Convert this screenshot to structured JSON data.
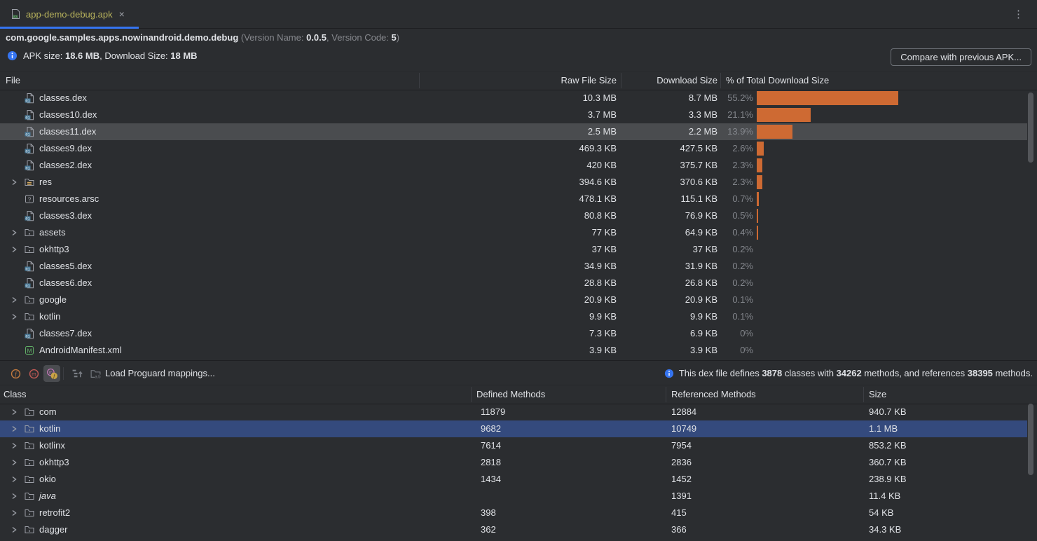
{
  "tab": {
    "title": "app-demo-debug.apk",
    "close_glyph": "×"
  },
  "header": {
    "package_name": "com.google.samples.apps.nowinandroid.demo.debug",
    "version": {
      "prefix": " (Version Name: ",
      "name": "0.0.5",
      "mid": ", Version Code: ",
      "code": "5",
      "suffix": ")"
    },
    "apk": {
      "label": "APK size: ",
      "size": "18.6 MB",
      "mid": ", Download Size: ",
      "download": "18 MB"
    },
    "compare_button_label": "Compare with previous APK..."
  },
  "files_table": {
    "columns": {
      "file": "File",
      "raw": "Raw File Size",
      "download": "Download Size",
      "pct": "% of Total Download Size"
    },
    "rows": [
      {
        "icon": "dex",
        "name": "classes.dex",
        "raw": "10.3 MB",
        "download": "8.7 MB",
        "pct": "55.2%",
        "pct_value": 55.2,
        "expandable": false,
        "selected": false
      },
      {
        "icon": "dex",
        "name": "classes10.dex",
        "raw": "3.7 MB",
        "download": "3.3 MB",
        "pct": "21.1%",
        "pct_value": 21.1,
        "expandable": false,
        "selected": false
      },
      {
        "icon": "dex",
        "name": "classes11.dex",
        "raw": "2.5 MB",
        "download": "2.2 MB",
        "pct": "13.9%",
        "pct_value": 13.9,
        "expandable": false,
        "selected": true
      },
      {
        "icon": "dex",
        "name": "classes9.dex",
        "raw": "469.3 KB",
        "download": "427.5 KB",
        "pct": "2.6%",
        "pct_value": 2.6,
        "expandable": false,
        "selected": false
      },
      {
        "icon": "dex",
        "name": "classes2.dex",
        "raw": "420 KB",
        "download": "375.7 KB",
        "pct": "2.3%",
        "pct_value": 2.3,
        "expandable": false,
        "selected": false
      },
      {
        "icon": "res",
        "name": "res",
        "raw": "394.6 KB",
        "download": "370.6 KB",
        "pct": "2.3%",
        "pct_value": 2.3,
        "expandable": true,
        "selected": false
      },
      {
        "icon": "arsc",
        "name": "resources.arsc",
        "raw": "478.1 KB",
        "download": "115.1 KB",
        "pct": "0.7%",
        "pct_value": 0.7,
        "expandable": false,
        "selected": false
      },
      {
        "icon": "dex",
        "name": "classes3.dex",
        "raw": "80.8 KB",
        "download": "76.9 KB",
        "pct": "0.5%",
        "pct_value": 0.5,
        "expandable": false,
        "selected": false
      },
      {
        "icon": "folder",
        "name": "assets",
        "raw": "77 KB",
        "download": "64.9 KB",
        "pct": "0.4%",
        "pct_value": 0.4,
        "expandable": true,
        "selected": false
      },
      {
        "icon": "folder",
        "name": "okhttp3",
        "raw": "37 KB",
        "download": "37 KB",
        "pct": "0.2%",
        "pct_value": 0.2,
        "expandable": true,
        "selected": false
      },
      {
        "icon": "dex",
        "name": "classes5.dex",
        "raw": "34.9 KB",
        "download": "31.9 KB",
        "pct": "0.2%",
        "pct_value": 0.2,
        "expandable": false,
        "selected": false
      },
      {
        "icon": "dex",
        "name": "classes6.dex",
        "raw": "28.8 KB",
        "download": "26.8 KB",
        "pct": "0.2%",
        "pct_value": 0.2,
        "expandable": false,
        "selected": false
      },
      {
        "icon": "folder",
        "name": "google",
        "raw": "20.9 KB",
        "download": "20.9 KB",
        "pct": "0.1%",
        "pct_value": 0.1,
        "expandable": true,
        "selected": false
      },
      {
        "icon": "folder",
        "name": "kotlin",
        "raw": "9.9 KB",
        "download": "9.9 KB",
        "pct": "0.1%",
        "pct_value": 0.1,
        "expandable": true,
        "selected": false
      },
      {
        "icon": "dex",
        "name": "classes7.dex",
        "raw": "7.3 KB",
        "download": "6.9 KB",
        "pct": "0%",
        "pct_value": 0,
        "expandable": false,
        "selected": false
      },
      {
        "icon": "manifest",
        "name": "AndroidManifest.xml",
        "raw": "3.9 KB",
        "download": "3.9 KB",
        "pct": "0%",
        "pct_value": 0,
        "expandable": false,
        "selected": false
      }
    ]
  },
  "dex_toolbar": {
    "load_mappings_label": "Load Proguard mappings...",
    "info": {
      "prefix": "This dex file defines ",
      "classes": "3878",
      "mid1": " classes with ",
      "methods": "34262",
      "mid2": " methods, and references ",
      "references": "38395",
      "suffix": " methods."
    }
  },
  "classes_table": {
    "columns": {
      "class": "Class",
      "defined": "Defined Methods",
      "referenced": "Referenced Methods",
      "size": "Size"
    },
    "rows": [
      {
        "name": "com",
        "defined": "11879",
        "referenced": "12884",
        "size": "940.7 KB",
        "selected": false,
        "italic": false
      },
      {
        "name": "kotlin",
        "defined": "9682",
        "referenced": "10749",
        "size": "1.1 MB",
        "selected": true,
        "italic": false
      },
      {
        "name": "kotlinx",
        "defined": "7614",
        "referenced": "7954",
        "size": "853.2 KB",
        "selected": false,
        "italic": false
      },
      {
        "name": "okhttp3",
        "defined": "2818",
        "referenced": "2836",
        "size": "360.7 KB",
        "selected": false,
        "italic": false
      },
      {
        "name": "okio",
        "defined": "1434",
        "referenced": "1452",
        "size": "238.9 KB",
        "selected": false,
        "italic": false
      },
      {
        "name": "java",
        "defined": "",
        "referenced": "1391",
        "size": "11.4 KB",
        "selected": false,
        "italic": true
      },
      {
        "name": "retrofit2",
        "defined": "398",
        "referenced": "415",
        "size": "54 KB",
        "selected": false,
        "italic": false
      },
      {
        "name": "dagger",
        "defined": "362",
        "referenced": "366",
        "size": "34.3 KB",
        "selected": false,
        "italic": false
      }
    ]
  },
  "colors": {
    "accent_blue": "#3574F0",
    "bar_orange": "#CE6A33",
    "selection_blue": "#344A7D",
    "selection_gray": "#4A4C4F",
    "tab_label": "#B8B35C"
  }
}
